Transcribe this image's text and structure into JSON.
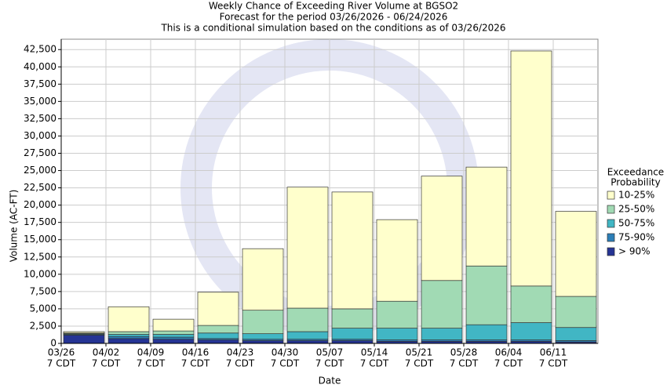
{
  "chart_data": {
    "type": "stacked-bar",
    "title": [
      "Weekly Chance of Exceeding River Volume at BGSO2",
      "Forecast for the period 03/26/2026 - 06/24/2026",
      "This is a conditional simulation based on the conditions as of 03/26/2026"
    ],
    "y_label": "Volume (AC-FT)",
    "x_label": "Date",
    "legend_title": [
      "Exceedance",
      "Probability"
    ],
    "categories": [
      [
        "03/26",
        "7 CDT"
      ],
      [
        "04/02",
        "7 CDT"
      ],
      [
        "04/09",
        "7 CDT"
      ],
      [
        "04/16",
        "7 CDT"
      ],
      [
        "04/23",
        "7 CDT"
      ],
      [
        "04/30",
        "7 CDT"
      ],
      [
        "05/07",
        "7 CDT"
      ],
      [
        "05/14",
        "7 CDT"
      ],
      [
        "05/21",
        "7 CDT"
      ],
      [
        "05/28",
        "7 CDT"
      ],
      [
        "06/04",
        "7 CDT"
      ],
      [
        "06/11",
        "7 CDT"
      ]
    ],
    "series": [
      {
        "name": "> 90%",
        "color": "#253494",
        "values": [
          1200,
          700,
          600,
          500,
          400,
          400,
          400,
          300,
          300,
          300,
          300,
          200
        ]
      },
      {
        "name": "75-90%",
        "color": "#2c7fb8",
        "values": [
          100,
          300,
          300,
          200,
          200,
          200,
          200,
          200,
          200,
          200,
          200,
          200
        ]
      },
      {
        "name": "50-75%",
        "color": "#41b6c4",
        "values": [
          100,
          300,
          400,
          800,
          800,
          1100,
          1600,
          1700,
          1700,
          2200,
          2500,
          1900
        ]
      },
      {
        "name": "25-50%",
        "color": "#a1dab4",
        "values": [
          100,
          400,
          500,
          1100,
          3400,
          3400,
          2800,
          3900,
          6900,
          8500,
          5300,
          4500
        ]
      },
      {
        "name": "10-25%",
        "color": "#ffffcc",
        "values": [
          200,
          3600,
          1700,
          4800,
          8900,
          17500,
          16900,
          11800,
          15100,
          14300,
          34000,
          12300
        ]
      }
    ],
    "ylim": [
      0,
      44000
    ],
    "yticks": [
      0,
      {
        "value": 2500,
        "label": "2,500"
      },
      {
        "value": 5000,
        "label": "5,000"
      },
      {
        "value": 7500,
        "label": "7,500"
      },
      {
        "value": 10000,
        "label": "10,000"
      },
      {
        "value": 12500,
        "label": "12,500"
      },
      {
        "value": 15000,
        "label": "15,000"
      },
      {
        "value": 17500,
        "label": "17,500"
      },
      {
        "value": 20000,
        "label": "20,000"
      },
      {
        "value": 22500,
        "label": "22,500"
      },
      {
        "value": 25000,
        "label": "25,000"
      },
      {
        "value": 27500,
        "label": "27,500"
      },
      {
        "value": 30000,
        "label": "30,000"
      },
      {
        "value": 32500,
        "label": "32,500"
      },
      {
        "value": 35000,
        "label": "35,000"
      },
      {
        "value": 37500,
        "label": "37,500"
      },
      {
        "value": 40000,
        "label": "40,000"
      },
      {
        "value": 42500,
        "label": "42,500"
      }
    ],
    "grid": true
  }
}
